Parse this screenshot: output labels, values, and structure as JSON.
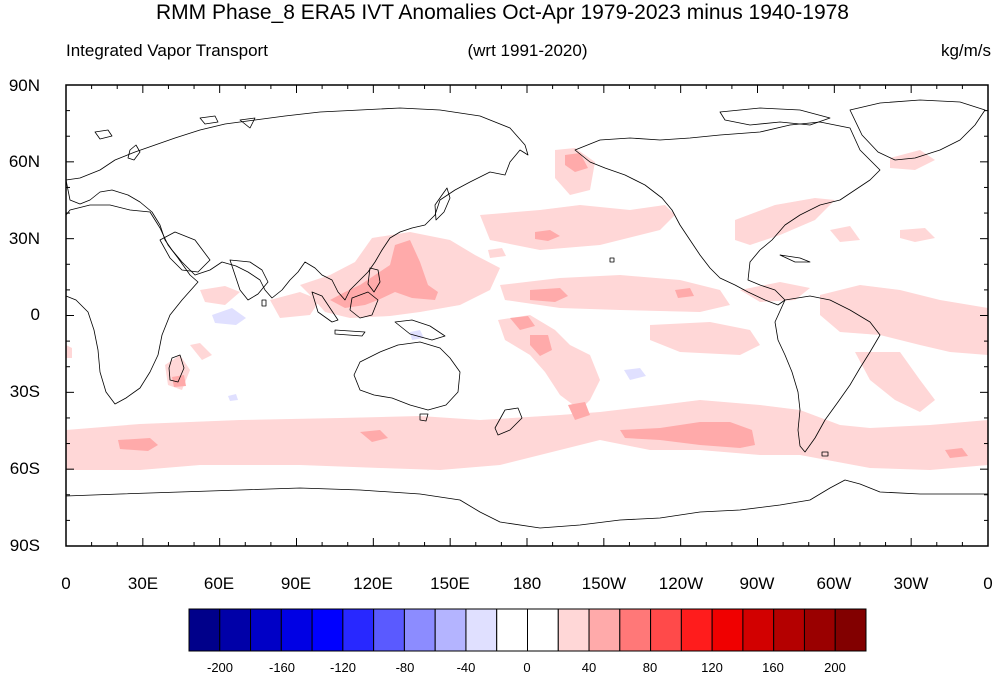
{
  "title": "RMM Phase_8 ERA5 IVT Anomalies Oct-Apr 1979-2023 minus 1940-1978",
  "subtitle_left": "Integrated Vapor Transport",
  "subtitle_center": "(wrt 1991-2020)",
  "subtitle_right": "kg/m/s",
  "lat_labels": [
    "90N",
    "60N",
    "30N",
    "0",
    "30S",
    "60S",
    "90S"
  ],
  "lon_labels": [
    "0",
    "30E",
    "60E",
    "90E",
    "120E",
    "150E",
    "180",
    "150W",
    "120W",
    "90W",
    "60W",
    "30W",
    "0"
  ],
  "colorbar": {
    "labels": [
      "-200",
      "-160",
      "-120",
      "-80",
      "-40",
      "0",
      "40",
      "80",
      "120",
      "160",
      "200"
    ],
    "colors": [
      "#00008a",
      "#0000a8",
      "#0000c6",
      "#0000e4",
      "#0000ff",
      "#2828ff",
      "#5a5aff",
      "#8c8cff",
      "#b4b4ff",
      "#e0e0ff",
      "#ffffff",
      "#ffffff",
      "#ffd7d7",
      "#ffaaaa",
      "#ff7878",
      "#ff4a4a",
      "#ff1c1c",
      "#f00000",
      "#d20000",
      "#b40000",
      "#9a0000",
      "#820000"
    ]
  }
}
